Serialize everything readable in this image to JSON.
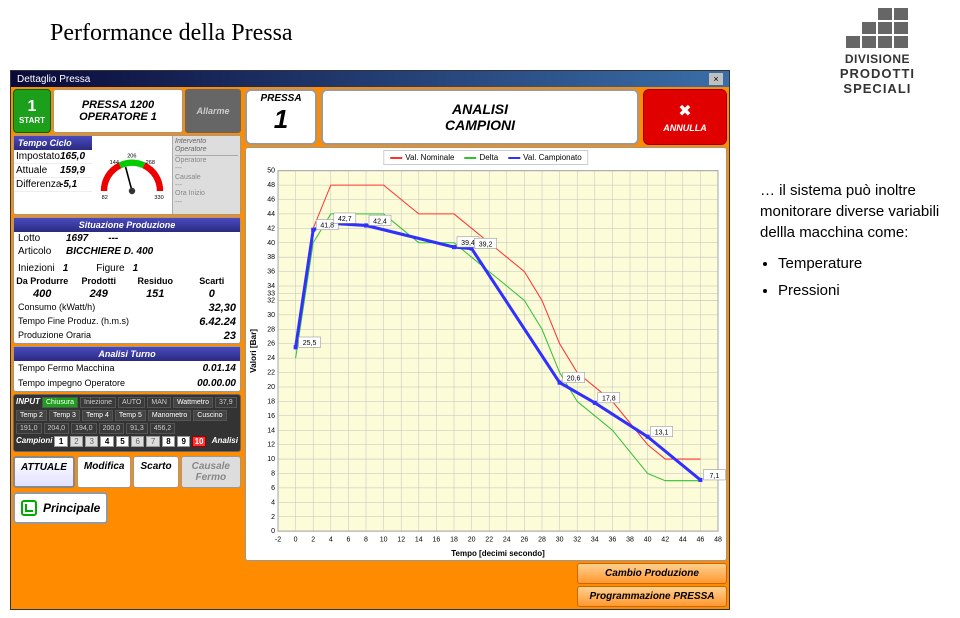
{
  "page_title": "Performance della Pressa",
  "logo": {
    "line1": "DIVISIONE",
    "line2": "PRODOTTI",
    "line3": "SPECIALI"
  },
  "side": {
    "intro": "… il sistema può inoltre monitorare diverse variabili dellla macchina come:",
    "items": [
      "Temperature",
      "Pressioni"
    ]
  },
  "titlebar": "Dettaglio Pressa",
  "start": {
    "num": "1",
    "label": "START"
  },
  "pressa": {
    "name": "PRESSA 1200",
    "operator": "OPERATORE 1"
  },
  "allarme": "Allarme",
  "cycle": {
    "header": "Tempo Ciclo",
    "impostato_l": "Impostato",
    "impostato_v": "165,0",
    "attuale_l": "Attuale",
    "attuale_v": "159,9",
    "diff_l": "Differenza",
    "diff_v": "-5,1",
    "g_min": "82",
    "g_max": "330",
    "g_lo": "144",
    "g_hi": "268",
    "g_mid": "206"
  },
  "intervento": {
    "header": "Intervento Operatore",
    "op": "Operatore",
    "op_v": "---",
    "cau": "Causale",
    "cau_v": "---",
    "ora": "Ora Inizio",
    "ora_v": "---"
  },
  "prod": {
    "header": "Situazione Produzione",
    "lotto_l": "Lotto",
    "lotto_v": "1697",
    "lotto_x": "---",
    "art_l": "Articolo",
    "art_v": "BICCHIERE D. 400",
    "iniez_l": "Iniezioni",
    "iniez_v": "1",
    "fig_l": "Figure",
    "fig_v": "1",
    "th": [
      "Da Produrre",
      "Prodotti",
      "Residuo",
      "Scarti"
    ],
    "td": [
      "400",
      "249",
      "151",
      "0"
    ],
    "cons_l": "Consumo (kWatt/h)",
    "cons_v": "32,30",
    "fine_l": "Tempo Fine Produz. (h.m.s)",
    "fine_v": "6.42.24",
    "orar_l": "Produzione Oraria",
    "orar_v": "23"
  },
  "turno": {
    "header": "Analisi Turno",
    "fermo_l": "Tempo Fermo Macchina",
    "fermo_v": "0.01.14",
    "imp_l": "Tempo impegno Operatore",
    "imp_v": "00.00.00"
  },
  "input": {
    "label": "INPUT",
    "chiusura": "Chiusura",
    "iniezione": "Iniezione",
    "auto": "AUTO",
    "man": "MAN",
    "watt_l": "Wattmetro",
    "watt_v": "37,9",
    "t2": "Temp 2",
    "t3": "Temp 3",
    "t4": "Temp 4",
    "t5": "Temp 5",
    "mano": "Manometro",
    "cusc": "Cuscino",
    "v1": "191,0",
    "v2": "204,0",
    "v3": "194,0",
    "v4": "200,0",
    "v5": "91,3",
    "v6": "456,2",
    "camp": "Campioni",
    "nums": [
      "1",
      "2",
      "3",
      "4",
      "5",
      "6",
      "7",
      "8",
      "9",
      "10"
    ],
    "analisi": "Analisi"
  },
  "tabs": {
    "attuale": "ATTUALE",
    "modifica": "Modifica",
    "scarto": "Scarto",
    "causale": "Causale Fermo"
  },
  "principale": "Principale",
  "btns": {
    "cambio": "Cambio Produzione",
    "prog": "Programmazione PRESSA"
  },
  "top": {
    "pressa_l": "PRESSA",
    "pressa_n": "1",
    "analisi1": "ANALISI",
    "analisi2": "CAMPIONI",
    "annulla": "ANNULLA"
  },
  "chart": {
    "xlabel": "Tempo [decimi secondo]",
    "ylabel": "Valori [Bar]",
    "legend": [
      "Val. Nominale",
      "Delta",
      "Val. Campionato"
    ],
    "legend_colors": [
      "#ff3030",
      "#30c030",
      "#3030ff"
    ],
    "x_ticks": [
      -2,
      0,
      2,
      4,
      6,
      8,
      10,
      12,
      14,
      16,
      18,
      20,
      22,
      24,
      26,
      28,
      30,
      32,
      34,
      36,
      38,
      40,
      42,
      44,
      46,
      48
    ],
    "y_ticks": [
      0,
      2,
      4,
      6,
      8,
      10,
      12,
      14,
      16,
      18,
      20,
      22,
      24,
      26,
      28,
      30,
      32,
      33,
      34,
      36,
      38,
      40,
      42,
      44,
      46,
      48,
      50
    ],
    "xlim": [
      -2,
      48
    ],
    "ylim": [
      0,
      50
    ],
    "red": [
      [
        0,
        26
      ],
      [
        2,
        42
      ],
      [
        4,
        48
      ],
      [
        6,
        48
      ],
      [
        8,
        48
      ],
      [
        10,
        48
      ],
      [
        12,
        46
      ],
      [
        14,
        44
      ],
      [
        16,
        44
      ],
      [
        18,
        44
      ],
      [
        20,
        42
      ],
      [
        22,
        40
      ],
      [
        24,
        38
      ],
      [
        26,
        36
      ],
      [
        28,
        32
      ],
      [
        30,
        26
      ],
      [
        32,
        22
      ],
      [
        34,
        20
      ],
      [
        36,
        18
      ],
      [
        38,
        15
      ],
      [
        40,
        12
      ],
      [
        42,
        10
      ],
      [
        44,
        10
      ],
      [
        46,
        10
      ]
    ],
    "green": [
      [
        0,
        24
      ],
      [
        2,
        40
      ],
      [
        4,
        44
      ],
      [
        6,
        44
      ],
      [
        8,
        44
      ],
      [
        10,
        44
      ],
      [
        12,
        42
      ],
      [
        14,
        40
      ],
      [
        16,
        40
      ],
      [
        18,
        40
      ],
      [
        20,
        38
      ],
      [
        22,
        36
      ],
      [
        24,
        34
      ],
      [
        26,
        32
      ],
      [
        28,
        28
      ],
      [
        30,
        22
      ],
      [
        32,
        18
      ],
      [
        34,
        16
      ],
      [
        36,
        14
      ],
      [
        38,
        11
      ],
      [
        40,
        8
      ],
      [
        42,
        7
      ],
      [
        44,
        7
      ],
      [
        46,
        7
      ]
    ],
    "blue": [
      [
        0,
        25.5
      ],
      [
        2,
        41.8
      ],
      [
        4,
        42.7
      ],
      [
        8,
        42.4
      ],
      [
        18,
        39.4
      ],
      [
        20,
        39.2
      ],
      [
        30,
        20.6
      ],
      [
        34,
        17.8
      ],
      [
        40,
        13.1
      ],
      [
        46,
        7.1
      ]
    ],
    "labels": [
      [
        0,
        25.5,
        "25,5"
      ],
      [
        2,
        41.8,
        "41,8"
      ],
      [
        4,
        42.7,
        "42,7"
      ],
      [
        8,
        42.4,
        "42,4"
      ],
      [
        18,
        39.4,
        "39,4"
      ],
      [
        20,
        39.2,
        "39,2"
      ],
      [
        30,
        20.6,
        "20,6"
      ],
      [
        34,
        17.8,
        "17,8"
      ],
      [
        40,
        13.1,
        "13,1"
      ],
      [
        46,
        7.1,
        "7,1"
      ]
    ],
    "bg": "#fcfcd8",
    "grid": "#c0c0c0"
  }
}
